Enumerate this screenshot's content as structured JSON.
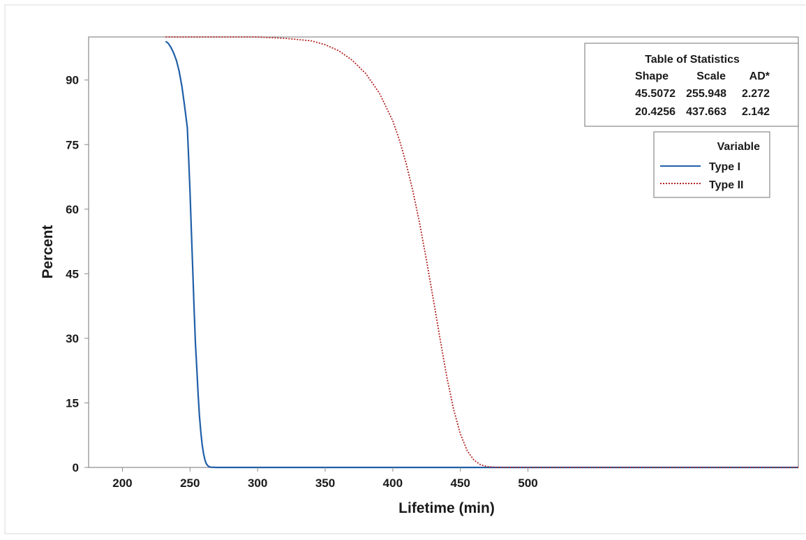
{
  "chart_data": {
    "type": "line",
    "xlabel": "Lifetime (min)",
    "ylabel": "Percent",
    "xlim": [
      175,
      700
    ],
    "ylim": [
      0,
      100
    ],
    "xticks": [
      200,
      250,
      300,
      350,
      400,
      450,
      500
    ],
    "yticks": [
      0,
      15,
      30,
      45,
      60,
      75,
      90
    ],
    "grid": false,
    "legend": {
      "title": "Variable",
      "placement": "top-right",
      "entries": [
        "Type I",
        "Type II"
      ]
    },
    "stats_table": {
      "title": "Table of Statistics",
      "headers": [
        "Shape",
        "Scale",
        "AD*"
      ],
      "rows": [
        [
          "45.5072",
          "255.948",
          "2.272"
        ],
        [
          "20.4256",
          "437.663",
          "2.142"
        ]
      ]
    },
    "series": [
      {
        "name": "Type I",
        "color": "#1f5fa8",
        "dash": "solid",
        "x": [
          232,
          234,
          236,
          238,
          240,
          242,
          244,
          246,
          248,
          249,
          250,
          251,
          252,
          253,
          254,
          255,
          256,
          257,
          258,
          259,
          260,
          261,
          262,
          263,
          264,
          265,
          266,
          268,
          270,
          300,
          350,
          400,
          450,
          500,
          600,
          700
        ],
        "y": [
          99,
          98.5,
          97.5,
          96.2,
          94.5,
          92,
          88.5,
          84,
          79,
          72,
          64,
          55,
          46,
          37,
          29,
          23,
          17,
          12,
          8.2,
          5.3,
          3.2,
          1.8,
          0.9,
          0.45,
          0.2,
          0.08,
          0.03,
          0.01,
          0,
          0,
          0,
          0,
          0,
          0,
          0,
          0
        ]
      },
      {
        "name": "Type II",
        "color": "#b22222",
        "dash": "dotted",
        "x": [
          232,
          260,
          280,
          300,
          320,
          330,
          340,
          350,
          360,
          370,
          380,
          390,
          400,
          405,
          410,
          415,
          420,
          425,
          430,
          435,
          440,
          445,
          450,
          455,
          460,
          465,
          470,
          475,
          480,
          490,
          500,
          520,
          600,
          700
        ],
        "y": [
          100,
          100,
          100,
          100,
          99.7,
          99.4,
          99.1,
          98.2,
          96.8,
          94.6,
          91.5,
          87,
          80.5,
          76,
          70.5,
          64,
          56.5,
          48,
          39,
          29.8,
          21,
          13.5,
          7.8,
          3.9,
          1.7,
          0.6,
          0.2,
          0.05,
          0.01,
          0,
          0,
          0,
          0,
          0
        ]
      }
    ]
  }
}
